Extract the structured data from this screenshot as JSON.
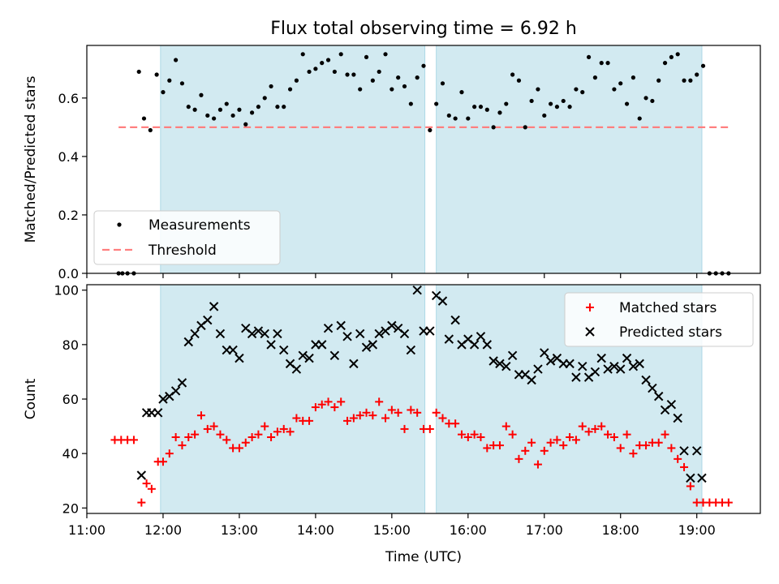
{
  "figure": {
    "title": "Flux total observing time = 6.92 h"
  },
  "chart_data": [
    {
      "type": "scatter",
      "ylabel": "Matched/Predicted stars",
      "xlabel": "",
      "xlim": [
        "11:00",
        "19:50"
      ],
      "ylim": [
        0,
        0.78
      ],
      "y_ticks": [
        0.0,
        0.2,
        0.4,
        0.6
      ],
      "shaded_intervals": [
        [
          "11:58",
          "15:26"
        ],
        [
          "15:35",
          "19:04"
        ]
      ],
      "legend": {
        "placement": "lower-left",
        "entries": [
          "Measurements",
          "Threshold"
        ]
      },
      "threshold": {
        "name": "Threshold",
        "value": 0.5,
        "x_start": "11:25",
        "x_end": "19:25",
        "color": "#ff7f7f"
      },
      "series": [
        {
          "name": "Measurements",
          "color": "#000000",
          "marker": "dot",
          "x": [
            "11:25",
            "11:28",
            "11:32",
            "11:37",
            "11:41",
            "11:45",
            "11:50",
            "11:55",
            "12:00",
            "12:05",
            "12:10",
            "12:15",
            "12:20",
            "12:25",
            "12:30",
            "12:35",
            "12:40",
            "12:45",
            "12:50",
            "12:55",
            "13:00",
            "13:05",
            "13:10",
            "13:15",
            "13:20",
            "13:25",
            "13:30",
            "13:35",
            "13:40",
            "13:45",
            "13:50",
            "13:55",
            "14:00",
            "14:05",
            "14:10",
            "14:15",
            "14:20",
            "14:25",
            "14:30",
            "14:35",
            "14:40",
            "14:45",
            "14:50",
            "14:55",
            "15:00",
            "15:05",
            "15:10",
            "15:15",
            "15:20",
            "15:25",
            "15:30",
            "15:35",
            "15:40",
            "15:45",
            "15:50",
            "15:55",
            "16:00",
            "16:05",
            "16:10",
            "16:15",
            "16:20",
            "16:25",
            "16:30",
            "16:35",
            "16:40",
            "16:45",
            "16:50",
            "16:55",
            "17:00",
            "17:05",
            "17:10",
            "17:15",
            "17:20",
            "17:25",
            "17:30",
            "17:35",
            "17:40",
            "17:45",
            "17:50",
            "17:55",
            "18:00",
            "18:05",
            "18:10",
            "18:15",
            "18:20",
            "18:25",
            "18:30",
            "18:35",
            "18:40",
            "18:45",
            "18:50",
            "18:55",
            "19:00",
            "19:05",
            "19:10",
            "19:15",
            "19:20",
            "19:25"
          ],
          "y": [
            0.0,
            0.0,
            0.0,
            0.0,
            0.69,
            0.53,
            0.49,
            0.68,
            0.62,
            0.66,
            0.73,
            0.65,
            0.57,
            0.56,
            0.61,
            0.54,
            0.53,
            0.56,
            0.58,
            0.54,
            0.56,
            0.51,
            0.55,
            0.57,
            0.6,
            0.64,
            0.57,
            0.57,
            0.63,
            0.66,
            0.75,
            0.69,
            0.7,
            0.72,
            0.73,
            0.69,
            0.75,
            0.68,
            0.68,
            0.63,
            0.74,
            0.66,
            0.69,
            0.75,
            0.63,
            0.67,
            0.64,
            0.58,
            0.67,
            0.71,
            0.49,
            0.58,
            0.65,
            0.54,
            0.53,
            0.62,
            0.53,
            0.57,
            0.57,
            0.56,
            0.5,
            0.55,
            0.58,
            0.68,
            0.66,
            0.5,
            0.59,
            0.63,
            0.54,
            0.58,
            0.57,
            0.59,
            0.57,
            0.63,
            0.62,
            0.74,
            0.67,
            0.72,
            0.72,
            0.63,
            0.65,
            0.58,
            0.67,
            0.53,
            0.6,
            0.59,
            0.66,
            0.72,
            0.74,
            0.75,
            0.66,
            0.66,
            0.68,
            0.71,
            0.0,
            0.0,
            0.0,
            0.0
          ]
        }
      ]
    },
    {
      "type": "scatter",
      "ylabel": "Count",
      "xlabel": "Time (UTC)",
      "xlim": [
        "11:00",
        "19:50"
      ],
      "ylim": [
        18,
        102
      ],
      "y_ticks": [
        20,
        40,
        60,
        80,
        100
      ],
      "x_ticks": [
        "11:00",
        "12:00",
        "13:00",
        "14:00",
        "15:00",
        "16:00",
        "17:00",
        "18:00",
        "19:00"
      ],
      "shaded_intervals": [
        [
          "11:58",
          "15:26"
        ],
        [
          "15:35",
          "19:04"
        ]
      ],
      "legend": {
        "placement": "top-right",
        "entries": [
          "Matched stars",
          "Predicted stars"
        ]
      },
      "series": [
        {
          "name": "Matched stars",
          "color": "#ff0000",
          "marker": "plus",
          "x": [
            "11:22",
            "11:27",
            "11:32",
            "11:37",
            "11:43",
            "11:47",
            "11:51",
            "11:56",
            "12:00",
            "12:05",
            "12:10",
            "12:15",
            "12:20",
            "12:25",
            "12:30",
            "12:35",
            "12:40",
            "12:45",
            "12:50",
            "12:55",
            "13:00",
            "13:05",
            "13:10",
            "13:15",
            "13:20",
            "13:25",
            "13:30",
            "13:35",
            "13:40",
            "13:45",
            "13:50",
            "13:55",
            "14:00",
            "14:05",
            "14:10",
            "14:15",
            "14:20",
            "14:25",
            "14:30",
            "14:35",
            "14:40",
            "14:45",
            "14:50",
            "14:55",
            "15:00",
            "15:05",
            "15:10",
            "15:15",
            "15:20",
            "15:25",
            "15:30",
            "15:35",
            "15:40",
            "15:45",
            "15:50",
            "15:55",
            "16:00",
            "16:05",
            "16:10",
            "16:15",
            "16:20",
            "16:25",
            "16:30",
            "16:35",
            "16:40",
            "16:45",
            "16:50",
            "16:55",
            "17:00",
            "17:05",
            "17:10",
            "17:15",
            "17:20",
            "17:25",
            "17:30",
            "17:35",
            "17:40",
            "17:45",
            "17:50",
            "17:55",
            "18:00",
            "18:05",
            "18:10",
            "18:15",
            "18:20",
            "18:25",
            "18:30",
            "18:35",
            "18:40",
            "18:45",
            "18:50",
            "18:55",
            "19:00",
            "19:05",
            "19:10",
            "19:15",
            "19:20",
            "19:25"
          ],
          "y": [
            45,
            45,
            45,
            45,
            22,
            29,
            27,
            37,
            37,
            40,
            46,
            43,
            46,
            47,
            54,
            49,
            50,
            47,
            45,
            42,
            42,
            44,
            46,
            47,
            50,
            46,
            48,
            49,
            48,
            53,
            52,
            52,
            57,
            58,
            59,
            57,
            59,
            52,
            53,
            54,
            55,
            54,
            59,
            53,
            56,
            55,
            49,
            56,
            55,
            49,
            49,
            55,
            53,
            51,
            51,
            47,
            46,
            47,
            46,
            42,
            43,
            43,
            50,
            47,
            38,
            41,
            44,
            36,
            41,
            44,
            45,
            43,
            46,
            45,
            50,
            48,
            49,
            50,
            47,
            46,
            42,
            47,
            40,
            43,
            43,
            44,
            44,
            47,
            42,
            38,
            35,
            28,
            22,
            22,
            22,
            22,
            22,
            22
          ]
        },
        {
          "name": "Predicted stars",
          "color": "#000000",
          "marker": "cross",
          "x": [
            "11:43",
            "11:47",
            "11:51",
            "11:56",
            "12:00",
            "12:05",
            "12:10",
            "12:15",
            "12:20",
            "12:25",
            "12:30",
            "12:35",
            "12:40",
            "12:45",
            "12:50",
            "12:55",
            "13:00",
            "13:05",
            "13:10",
            "13:15",
            "13:20",
            "13:25",
            "13:30",
            "13:35",
            "13:40",
            "13:45",
            "13:50",
            "13:55",
            "14:00",
            "14:05",
            "14:10",
            "14:15",
            "14:20",
            "14:25",
            "14:30",
            "14:35",
            "14:40",
            "14:45",
            "14:50",
            "14:55",
            "15:00",
            "15:05",
            "15:10",
            "15:15",
            "15:20",
            "15:25",
            "15:30",
            "15:35",
            "15:40",
            "15:45",
            "15:50",
            "15:55",
            "16:00",
            "16:05",
            "16:10",
            "16:15",
            "16:20",
            "16:25",
            "16:30",
            "16:35",
            "16:40",
            "16:45",
            "16:50",
            "16:55",
            "17:00",
            "17:05",
            "17:10",
            "17:15",
            "17:20",
            "17:25",
            "17:30",
            "17:35",
            "17:40",
            "17:45",
            "17:50",
            "17:55",
            "18:00",
            "18:05",
            "18:10",
            "18:15",
            "18:20",
            "18:25",
            "18:30",
            "18:35",
            "18:40",
            "18:45",
            "18:50",
            "18:55",
            "19:00",
            "19:04"
          ],
          "y": [
            32,
            55,
            55,
            55,
            60,
            61,
            63,
            66,
            81,
            84,
            87,
            89,
            94,
            84,
            78,
            78,
            75,
            86,
            84,
            85,
            84,
            80,
            84,
            78,
            73,
            71,
            76,
            75,
            80,
            80,
            86,
            76,
            87,
            83,
            73,
            84,
            79,
            80,
            84,
            85,
            87,
            86,
            84,
            78,
            100,
            85,
            85,
            98,
            96,
            82,
            89,
            80,
            82,
            80,
            83,
            80,
            74,
            73,
            72,
            76,
            69,
            69,
            67,
            71,
            77,
            74,
            75,
            73,
            73,
            68,
            72,
            68,
            70,
            75,
            71,
            72,
            71,
            75,
            72,
            73,
            67,
            64,
            61,
            56,
            58,
            53,
            41,
            31,
            41,
            31
          ]
        }
      ]
    }
  ]
}
